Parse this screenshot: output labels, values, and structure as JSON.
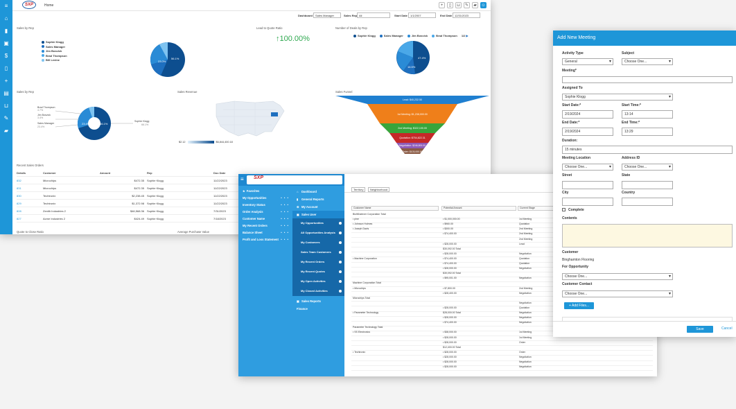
{
  "dashboard": {
    "logo": "SXP",
    "breadcrumb": "Home",
    "left_icons": [
      "menu-icon",
      "chart-icon",
      "briefcase-icon",
      "dollar-icon",
      "document-icon",
      "plus-icon",
      "ledger-icon",
      "basket-icon",
      "edit-icon",
      "truck-icon"
    ],
    "filters": {
      "dashboard_label": "Dashboard",
      "dashboard_value": "Sales Manager",
      "sales_rep_label": "Sales Rep",
      "sales_rep_value": "All",
      "start_date_label": "Start Date",
      "start_date_value": "1/1/2007",
      "end_date_label": "End Date",
      "end_date_value": "12/31/2023"
    },
    "panels": {
      "sales_by_rep": "Sales by Rep",
      "lead_to_quote": "Lead to Quote Ratio",
      "deals_by_rep": "Number of Deals by Rep",
      "sales_by_rep2": "Sales by Rep",
      "sales_revenue": "Sales Revenue",
      "sales_funnel": "Sales Funnel",
      "recent_orders": "Recent Sales Orders",
      "quote_close": "Quote to Close Ratio",
      "avg_purchase": "Average Purchase Value"
    },
    "kpi_ratio": "100.00%",
    "legend1": [
      "Sophie Klogg",
      "Sales Manager",
      "Jim Bosvick",
      "Brad Thompson",
      "Bill Levine"
    ],
    "legend2": [
      "Sophie Klogg",
      "Sales Manager",
      "Jim Bosvick",
      "Brad Thompson"
    ],
    "legend2_page": "1/2",
    "pie1_label": "23.0%",
    "pie1_label2": "56.1%",
    "pie2_labels": [
      "47.4%",
      "16.5%"
    ],
    "donut_labels": {
      "a": "Brad Thompson",
      "a_pct": "4.7%",
      "b": "Jim Bosvick",
      "b_pct": "3.4%",
      "c": "Sales Manager",
      "c_pct": "23.4%",
      "d": "Sophie Klogg",
      "d_pct": "66.1%",
      "center1": "23.4%",
      "center2": "66.1%"
    },
    "map_min": "$2.12",
    "map_max": "$6,844,400.18",
    "funnel": [
      {
        "label": "Lead: $40,232.50",
        "color": "#1f7fd0"
      },
      {
        "label": "1st Meeting: $1,238,000.00",
        "color": "#ef7f1a"
      },
      {
        "label": "2nd Meeting: $322,100.00",
        "color": "#38a53b"
      },
      {
        "label": "Quotation: $754,822.31",
        "color": "#c62828"
      },
      {
        "label": "Negotiation: $246,800.00",
        "color": "#8e5cb8"
      },
      {
        "label": "Order: $103,000.00",
        "color": "#8a5a44"
      }
    ],
    "orders_headers": [
      "Details",
      "Customer",
      "Amount",
      "Rep",
      "Doc Date"
    ],
    "orders": [
      [
        "832",
        "Microchips",
        "$472.35",
        "Sophie Klogg",
        "11/22/2023"
      ],
      [
        "831",
        "Microchips",
        "$472.35",
        "Sophie Klogg",
        "11/22/2023"
      ],
      [
        "830",
        "Techtronix",
        "$2,238.45",
        "Sophie Klogg",
        "11/22/2023"
      ],
      [
        "829",
        "Techtronix",
        "$1,372.98",
        "Sophie Klogg",
        "11/22/2023"
      ],
      [
        "828",
        "Zenith Industries 2",
        "$46,568.36",
        "Sophie Klogg",
        "7/31/2023"
      ],
      [
        "827",
        "Acme Industries 2",
        "$424.49",
        "Sophie Klogg",
        "7/18/2023"
      ]
    ]
  },
  "report": {
    "logo": "SXP",
    "col1": [
      {
        "label": "Favorites",
        "dots": ""
      },
      {
        "label": "My Opportunities",
        "dots": "• • •"
      },
      {
        "label": "Inventory Status",
        "dots": "• • •"
      },
      {
        "label": "Order Analysis",
        "dots": "• • •"
      },
      {
        "label": "Customer Name",
        "dots": "• • •"
      },
      {
        "label": "My Recent Orders",
        "dots": "• • •"
      },
      {
        "label": "Balance Sheet",
        "dots": "• • •"
      },
      {
        "label": "Profit and Loss Statement",
        "dots": "• • •"
      }
    ],
    "col2_top": [
      "Dashboard",
      "General Reports",
      "My Account",
      "Sales User"
    ],
    "col2_sub": [
      "My Opportunities",
      "All Opportunities Analysis",
      "My Customers",
      "Sales Team Customers",
      "My Recent Orders",
      "My Recent Quotes",
      "My Open Activities",
      "My Closed Activities"
    ],
    "col2_bottom": [
      "Sales Reports",
      "Finance"
    ],
    "toolbar": {
      "territory": "Territory",
      "neighborhood": "Neighborhood",
      "preview": "Preview Report"
    },
    "col_headers": [
      "Customer Name",
      "Potential Amount",
      "Current Stage"
    ],
    "rows": [
      {
        "c": "BioWhatever Corporation Total",
        "a": "",
        "s": ""
      },
      {
        "c": "• pine",
        "a": "• $1,000,000.00",
        "s": "1st Meeting"
      },
      {
        "c": "• Johnson Holmes",
        "a": "• $960.00",
        "s": "Quotation"
      },
      {
        "c": "• Joseph Davis",
        "a": "• $300.00",
        "s": "2nd Meeting"
      },
      {
        "c": "",
        "a": "• $74,400.00",
        "s": "2nd Meeting"
      },
      {
        "c": "",
        "a": "",
        "s": "2nd Meeting"
      },
      {
        "c": "",
        "a": "• $28,000.00",
        "s": "Lead"
      },
      {
        "c": "",
        "a": "$30,092.00 Total",
        "s": ""
      },
      {
        "c": "",
        "a": "• $28,000.00",
        "s": "Negotiation"
      },
      {
        "c": "• Machine Corporation",
        "a": "• $74,400.00",
        "s": "Quotation"
      },
      {
        "c": "",
        "a": "• $74,400.00",
        "s": "Quotation"
      },
      {
        "c": "",
        "a": "• $28,000.00",
        "s": "Negotiation"
      },
      {
        "c": "",
        "a": "$30,092.00 Total",
        "s": ""
      },
      {
        "c": "",
        "a": "• $95,001.00",
        "s": "Negotiation"
      },
      {
        "c": "Machine Corporation Total",
        "a": "",
        "s": ""
      },
      {
        "c": "• Microchips",
        "a": "• $7,800.00",
        "s": "2nd Meeting"
      },
      {
        "c": "",
        "a": "• $28,400.00",
        "s": "Negotiation"
      },
      {
        "c": "Microchips Total",
        "a": "",
        "s": ""
      },
      {
        "c": "",
        "a": "",
        "s": "Negotiation"
      },
      {
        "c": "",
        "a": "• $28,000.00",
        "s": "Quotation"
      },
      {
        "c": "• Parameter Technology",
        "a": "$28,000.00 Total",
        "s": "Negotiation"
      },
      {
        "c": "",
        "a": "• $28,000.00",
        "s": "Negotiation"
      },
      {
        "c": "",
        "a": "• $74,400.00",
        "s": "Negotiation"
      },
      {
        "c": "Parameter Technology Total",
        "a": "",
        "s": ""
      },
      {
        "c": "• SS Electronics",
        "a": "• $38,000.00",
        "s": "1st Meeting"
      },
      {
        "c": "",
        "a": "• $28,000.00",
        "s": "1st Meeting"
      },
      {
        "c": "",
        "a": "• $28,000.00",
        "s": "Order"
      },
      {
        "c": "",
        "a": "$12,400.00 Total",
        "s": ""
      },
      {
        "c": "• Techtronix",
        "a": "• $28,000.00",
        "s": "Order"
      },
      {
        "c": "",
        "a": "• $28,000.00",
        "s": "Negotiation"
      },
      {
        "c": "",
        "a": "• $28,000.00",
        "s": "Negotiation"
      },
      {
        "c": "",
        "a": "• $28,000.00",
        "s": "Negotiation"
      }
    ]
  },
  "meeting": {
    "title": "Add New Meeting",
    "activity_type_label": "Activity Type",
    "activity_type_value": "General",
    "subject_label": "Subject",
    "subject_value": "Choose One...",
    "meeting_label": "Meeting*",
    "meeting_value": "",
    "assigned_to_label": "Assigned To",
    "assigned_to_value": "Sophie Klogg",
    "start_date_label": "Start Date:*",
    "start_date_value": "2/19/2024",
    "start_time_label": "Start Time:*",
    "start_time_value": "13:14",
    "end_date_label": "End Date:*",
    "end_date_value": "2/19/2024",
    "end_time_label": "End Time:*",
    "end_time_value": "13:29",
    "duration_label": "Duration:",
    "duration_value": "15 minutes",
    "meeting_location_label": "Meeting Location",
    "meeting_location_value": "Choose One...",
    "address_id_label": "Address ID",
    "address_id_value": "Choose One...",
    "street_label": "Street",
    "state_label": "State",
    "city_label": "City",
    "country_label": "Country",
    "complete_label": "Complete",
    "contents_label": "Contents",
    "customer_label": "Customer",
    "customer_value": "Binghamton Flooring",
    "for_opportunity_label": "For Opportunity",
    "for_opportunity_value": "Choose One...",
    "customer_contact_label": "Customer Contact",
    "customer_contact_value": "Choose One...",
    "add_files": "+ Add Files...",
    "save": "Save",
    "cancel": "Cancel"
  }
}
